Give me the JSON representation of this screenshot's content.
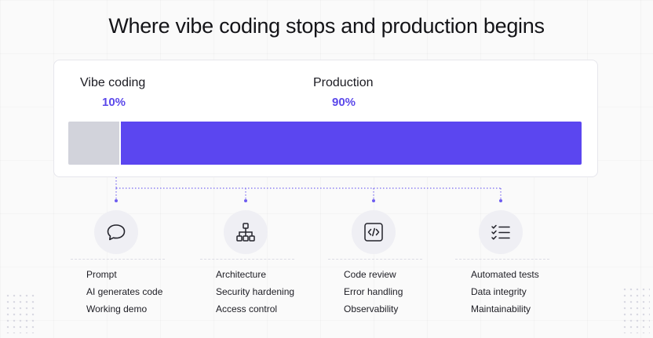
{
  "title": "Where vibe coding stops and production begins",
  "segments": [
    {
      "label": "Vibe coding",
      "percent_text": "10%",
      "value": 10,
      "color": "#d2d3db"
    },
    {
      "label": "Production",
      "percent_text": "90%",
      "value": 90,
      "color": "#5b46f0"
    }
  ],
  "accent_color": "#5b48ea",
  "columns": [
    {
      "icon": "speech-bubble-icon",
      "items": [
        "Prompt",
        "AI generates code",
        "Working demo"
      ]
    },
    {
      "icon": "hierarchy-icon",
      "items": [
        "Architecture",
        "Security hardening",
        "Access control"
      ]
    },
    {
      "icon": "code-brackets-icon",
      "items": [
        "Code review",
        "Error handling",
        "Observability"
      ]
    },
    {
      "icon": "checklist-icon",
      "items": [
        "Automated tests",
        "Data integrity",
        "Maintainability"
      ]
    }
  ]
}
